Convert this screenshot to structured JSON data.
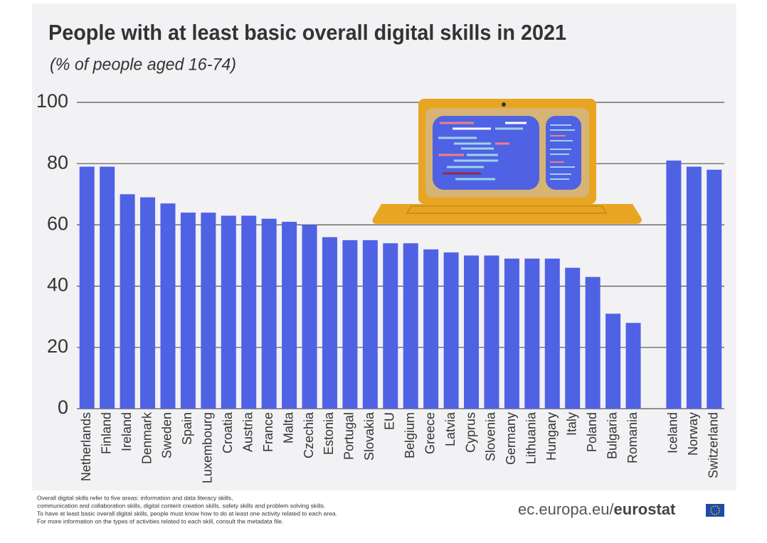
{
  "chart_data": {
    "type": "bar",
    "title": "People with at least basic overall digital skills  in 2021",
    "subtitle": "(% of people aged 16-74)",
    "categories": [
      "Netherlands",
      "Finland",
      "Ireland",
      "Denmark",
      "Sweden",
      "Spain",
      "Luxembourg",
      "Croatia",
      "Austria",
      "France",
      "Malta",
      "Czechia",
      "Estonia",
      "Portugal",
      "Slovakia",
      "EU",
      "Belgium",
      "Greece",
      "Latvia",
      "Cyprus",
      "Slovenia",
      "Germany",
      "Lithuania",
      "Hungary",
      "Italy",
      "Poland",
      "Bulgaria",
      "Romania",
      null,
      "Iceland",
      "Norway",
      "Switzerland"
    ],
    "values": [
      79,
      79,
      70,
      69,
      67,
      64,
      64,
      63,
      63,
      62,
      61,
      60,
      56,
      55,
      55,
      54,
      54,
      52,
      51,
      50,
      50,
      49,
      49,
      49,
      46,
      43,
      31,
      28,
      null,
      81,
      79,
      78
    ],
    "color": "#4f62e4",
    "ylim": [
      0,
      100
    ],
    "yticks": [
      0,
      20,
      40,
      60,
      80,
      100
    ],
    "grid": true,
    "notes": [
      "Overall digital skills refer to five areas: information and data literacy skills,",
      "communication and collaboration skills, digital content creation skills, safety skills and problem solving skills.",
      "To have at least basic overall digital skills, people must know how to do at least one activity related to each area.",
      "For more information on the types of activities related to each skill, consult the metadata file."
    ],
    "source": [
      "ec.europa.eu/",
      "eurostat"
    ]
  }
}
